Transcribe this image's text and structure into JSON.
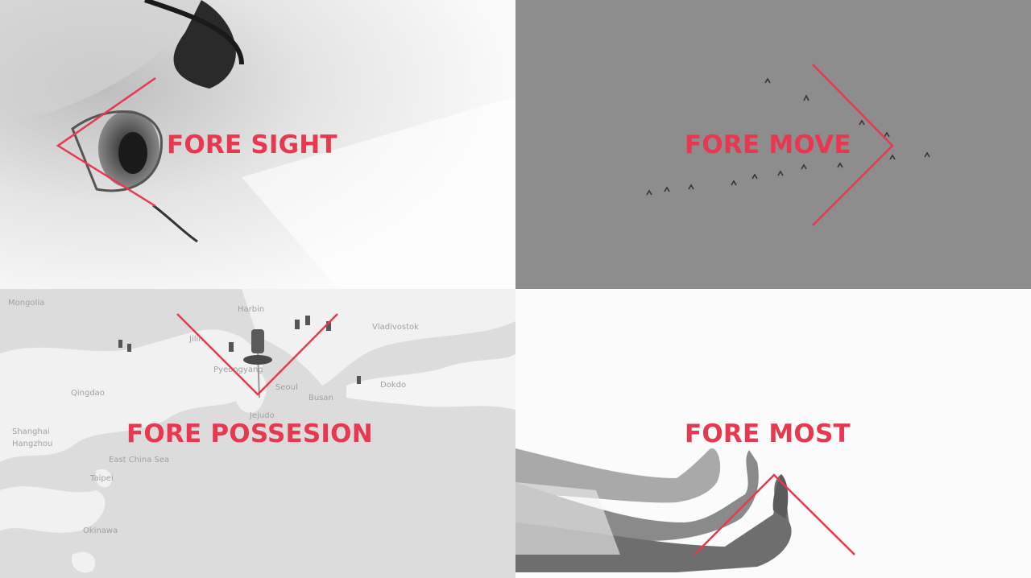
{
  "colors": {
    "accent": "#e8384f",
    "sky": "#8c8c8c"
  },
  "panels": [
    {
      "caption": "FORE SIGHT",
      "icon": "eye-photo"
    },
    {
      "caption": "FORE MOVE",
      "icon": "bird-flock-photo"
    },
    {
      "caption": "FORE POSSESION",
      "icon": "map-pins-photo"
    },
    {
      "caption": "FORE MOST",
      "icon": "thumbs-up-photo"
    }
  ],
  "map_labels": [
    "Harbin",
    "Vladivostok",
    "Jilin",
    "Pyeongyang",
    "Seoul",
    "Busan",
    "Dokdo",
    "Jejudo",
    "Qingdao",
    "Shanghai",
    "Hangzhou",
    "Taipei",
    "Okinawa",
    "Mongolia",
    "East China Sea"
  ]
}
